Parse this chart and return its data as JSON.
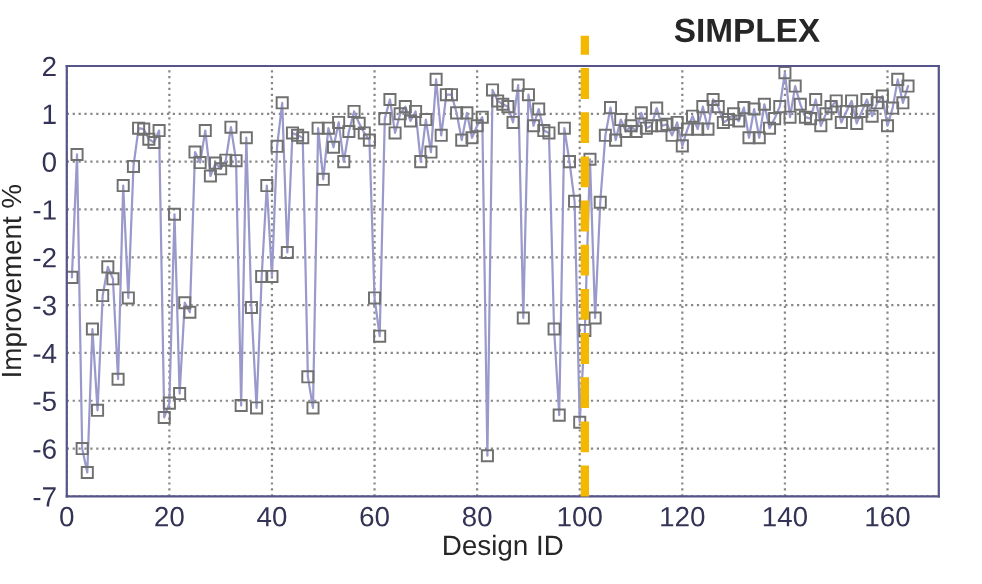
{
  "chart_data": {
    "type": "line",
    "xlabel": "Design ID",
    "ylabel": "Improvement %",
    "annotations": [
      "SIMPLEX"
    ],
    "x": [
      1,
      2,
      3,
      4,
      5,
      6,
      7,
      8,
      9,
      10,
      11,
      12,
      13,
      14,
      15,
      16,
      17,
      18,
      19,
      20,
      21,
      22,
      23,
      24,
      25,
      26,
      27,
      28,
      29,
      30,
      31,
      32,
      33,
      34,
      35,
      36,
      37,
      38,
      39,
      40,
      41,
      42,
      43,
      44,
      45,
      46,
      47,
      48,
      49,
      50,
      51,
      52,
      53,
      54,
      55,
      56,
      57,
      58,
      59,
      60,
      61,
      62,
      63,
      64,
      65,
      66,
      67,
      68,
      69,
      70,
      71,
      72,
      73,
      74,
      75,
      76,
      77,
      78,
      79,
      80,
      81,
      82,
      83,
      84,
      85,
      86,
      87,
      88,
      89,
      90,
      91,
      92,
      93,
      94,
      95,
      96,
      97,
      98,
      99,
      100,
      101,
      102,
      103,
      104,
      105,
      106,
      107,
      108,
      109,
      110,
      111,
      112,
      113,
      114,
      115,
      116,
      117,
      118,
      119,
      120,
      121,
      122,
      123,
      124,
      125,
      126,
      127,
      128,
      129,
      130,
      131,
      132,
      133,
      134,
      135,
      136,
      137,
      138,
      139,
      140,
      141,
      142,
      143,
      144,
      145,
      146,
      147,
      148,
      149,
      150,
      151,
      152,
      153,
      154,
      155,
      156,
      157,
      158,
      159,
      160,
      161,
      162,
      163,
      164
    ],
    "series": [
      {
        "color": "#9999cc",
        "values": [
          -2.42,
          0.15,
          -6.0,
          -6.5,
          -3.5,
          -5.2,
          -2.8,
          -2.2,
          -2.45,
          -4.55,
          -0.5,
          -2.85,
          -0.1,
          0.7,
          0.68,
          0.47,
          0.4,
          0.65,
          -5.35,
          -5.05,
          -1.1,
          -4.85,
          -2.95,
          -3.15,
          0.2,
          -0.02,
          0.65,
          -0.3,
          -0.03,
          -0.15,
          0.03,
          0.72,
          0.02,
          -5.1,
          0.5,
          -3.05,
          -5.15,
          -2.4,
          -0.5,
          -2.4,
          0.32,
          1.23,
          -1.9,
          0.6,
          0.55,
          0.5,
          -4.5,
          -5.15,
          0.7,
          -0.37,
          0.7,
          0.3,
          0.82,
          0.0,
          0.63,
          1.05,
          0.8,
          0.6,
          0.45,
          -2.85,
          -3.65,
          0.9,
          1.3,
          0.6,
          1.0,
          1.15,
          0.85,
          1.05,
          0.0,
          0.88,
          0.2,
          1.72,
          0.55,
          1.4,
          1.4,
          1.02,
          0.45,
          1.02,
          0.5,
          0.75,
          0.93,
          -6.15,
          1.5,
          1.27,
          1.2,
          1.15,
          0.82,
          1.6,
          -3.27,
          1.4,
          0.75,
          1.1,
          0.65,
          0.6,
          -3.5,
          -5.3,
          0.7,
          0.0,
          -0.83,
          -5.45,
          -3.53,
          0.05,
          -3.27,
          -0.85,
          0.55,
          1.13,
          0.45,
          0.88,
          0.63,
          0.75,
          0.63,
          1.02,
          0.7,
          0.75,
          1.12,
          0.75,
          0.78,
          0.55,
          0.82,
          0.33,
          0.68,
          0.95,
          0.68,
          1.15,
          0.68,
          1.3,
          1.15,
          0.82,
          0.88,
          1.0,
          0.85,
          1.13,
          0.5,
          1.1,
          0.5,
          1.2,
          0.7,
          0.9,
          1.15,
          1.86,
          0.93,
          1.58,
          1.2,
          0.93,
          0.9,
          1.3,
          0.75,
          1.0,
          1.15,
          1.27,
          0.82,
          1.05,
          1.27,
          0.8,
          1.05,
          1.3,
          0.95,
          1.23,
          1.37,
          0.75,
          1.12,
          1.72,
          1.23,
          1.58
        ]
      }
    ],
    "marker": "square",
    "line_style": "solid",
    "xlim": [
      0,
      170
    ],
    "xticks": [
      0,
      20,
      40,
      60,
      80,
      100,
      120,
      140,
      160
    ],
    "ylim": [
      -7,
      2
    ],
    "yticks": [
      -7,
      -6,
      -5,
      -4,
      -3,
      -2,
      -1,
      0,
      1,
      2
    ],
    "grid": true,
    "ref_lines": [
      {
        "axis": "x",
        "value": 101,
        "color": "#f5b800",
        "line_style": "dashed"
      }
    ]
  }
}
